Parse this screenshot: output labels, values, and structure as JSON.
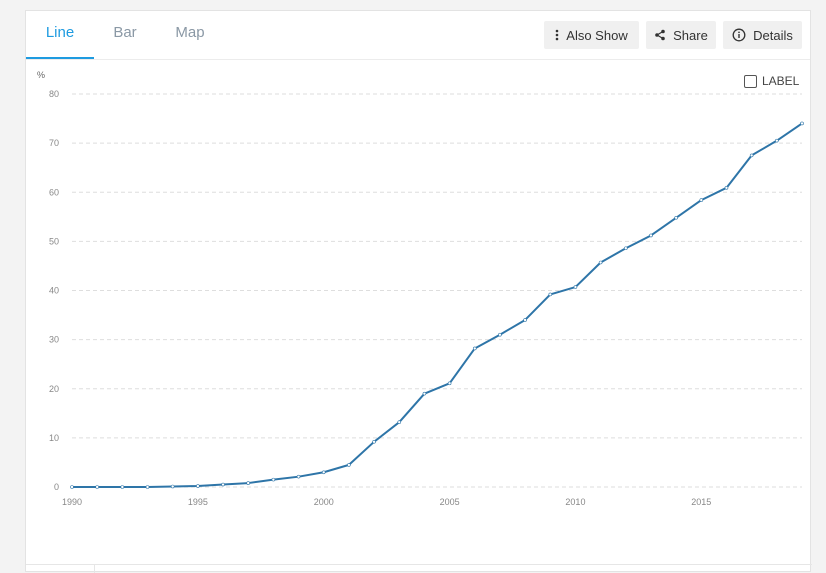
{
  "tabs": [
    {
      "label": "Line",
      "active": true
    },
    {
      "label": "Bar",
      "active": false
    },
    {
      "label": "Map",
      "active": false
    }
  ],
  "toolbar": {
    "also_show": "Also Show",
    "share": "Share",
    "details": "Details"
  },
  "label_toggle": {
    "label": "LABEL",
    "checked": false
  },
  "colors": {
    "line": "#2e75a8",
    "accent": "#1e9be0"
  },
  "icons": {
    "also_show": "vertical-dots-icon",
    "share": "share-icon",
    "details": "info-icon"
  },
  "chart_data": {
    "type": "line",
    "ylabel": "%",
    "xlabel": "",
    "ylim": [
      0,
      80
    ],
    "yticks": [
      0,
      10,
      20,
      30,
      40,
      50,
      60,
      70,
      80
    ],
    "xticks": [
      1990,
      1995,
      2000,
      2005,
      2010,
      2015
    ],
    "xlim": [
      1990,
      2019
    ],
    "grid": true,
    "series": [
      {
        "x": [
          1990,
          1991,
          1992,
          1993,
          1994,
          1995,
          1996,
          1997,
          1998,
          1999,
          2000,
          2001,
          2002,
          2003,
          2004,
          2005,
          2006,
          2007,
          2008,
          2009,
          2010,
          2011,
          2012,
          2013,
          2014,
          2015,
          2016,
          2017,
          2018,
          2019
        ],
        "values": [
          0,
          0,
          0,
          0,
          0.1,
          0.2,
          0.5,
          0.8,
          1.5,
          2.1,
          3.0,
          4.5,
          9.2,
          13.2,
          19.0,
          21.1,
          28.2,
          31.0,
          34.0,
          39.2,
          40.7,
          45.7,
          48.6,
          51.2,
          54.8,
          58.4,
          60.9,
          67.5,
          70.5,
          74.0
        ]
      }
    ]
  }
}
